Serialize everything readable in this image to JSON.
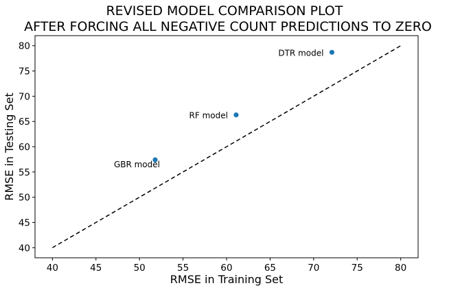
{
  "chart_data": {
    "type": "scatter",
    "title": [
      "REVISED MODEL COMPARISON PLOT",
      "AFTER FORCING ALL NEGATIVE COUNT PREDICTIONS TO ZERO"
    ],
    "xlabel": "RMSE in Training Set",
    "ylabel": "RMSE in Testing Set",
    "xlim": [
      38,
      82
    ],
    "ylim": [
      38,
      82
    ],
    "xticks": [
      40,
      45,
      50,
      55,
      60,
      65,
      70,
      75,
      80
    ],
    "yticks": [
      40,
      45,
      50,
      55,
      60,
      65,
      70,
      75,
      80
    ],
    "grid": false,
    "points": [
      {
        "label": "DTR model",
        "x": 72.1,
        "y": 78.7,
        "label_position": "left"
      },
      {
        "label": "RF model",
        "x": 61.1,
        "y": 66.3,
        "label_position": "left"
      },
      {
        "label": "GBR model",
        "x": 51.8,
        "y": 57.4,
        "label_position": "below-left"
      }
    ],
    "reference_line": {
      "x": [
        40,
        80
      ],
      "y": [
        40,
        80
      ],
      "style": "dashed"
    },
    "colors": {
      "points": "#1f77b4",
      "reference_line": "#000000"
    }
  }
}
